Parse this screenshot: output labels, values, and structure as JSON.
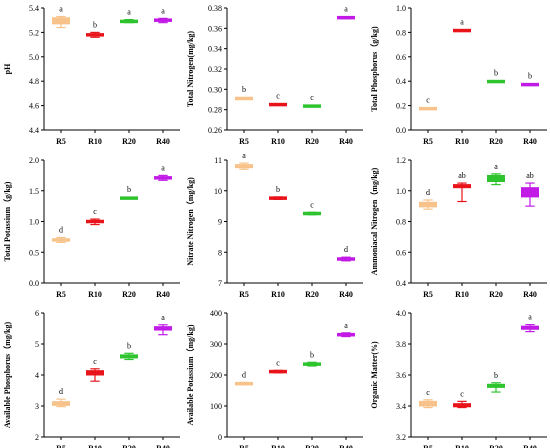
{
  "figure": {
    "colors": {
      "R5": "#f7c38a",
      "R10": "#e8141b",
      "R20": "#2fc42f",
      "R40": "#c21be6"
    },
    "categories": [
      "R5",
      "R10",
      "R20",
      "R40"
    ]
  },
  "chart_data": [
    {
      "type": "box",
      "ylabel": "pH",
      "ylim": [
        4.4,
        5.4
      ],
      "yticks": [
        4.4,
        4.6,
        4.8,
        5.0,
        5.2,
        5.4
      ],
      "decimals": 1,
      "categories": [
        "R5",
        "R10",
        "R20",
        "R40"
      ],
      "boxes": [
        {
          "min": 5.24,
          "q1": 5.27,
          "median": 5.29,
          "q3": 5.32,
          "max": 5.33,
          "letter": "a"
        },
        {
          "min": 5.16,
          "q1": 5.17,
          "median": 5.18,
          "q3": 5.19,
          "max": 5.2,
          "letter": "b"
        },
        {
          "min": 5.28,
          "q1": 5.285,
          "median": 5.29,
          "q3": 5.3,
          "max": 5.305,
          "letter": "a"
        },
        {
          "min": 5.28,
          "q1": 5.29,
          "median": 5.3,
          "q3": 5.31,
          "max": 5.315,
          "letter": "a"
        }
      ]
    },
    {
      "type": "box",
      "ylabel": "Total Nitrogen(mg/kg)",
      "ylim": [
        0.26,
        0.38
      ],
      "yticks": [
        0.26,
        0.28,
        0.3,
        0.32,
        0.34,
        0.36,
        0.38
      ],
      "decimals": 2,
      "categories": [
        "R5",
        "R10",
        "R20",
        "R40"
      ],
      "boxes": [
        {
          "min": 0.2905,
          "q1": 0.2908,
          "median": 0.291,
          "q3": 0.2912,
          "max": 0.2915,
          "letter": "b"
        },
        {
          "min": 0.2845,
          "q1": 0.2848,
          "median": 0.285,
          "q3": 0.2853,
          "max": 0.2856,
          "letter": "c"
        },
        {
          "min": 0.2828,
          "q1": 0.2832,
          "median": 0.2835,
          "q3": 0.2838,
          "max": 0.2842,
          "letter": "c"
        },
        {
          "min": 0.3695,
          "q1": 0.37,
          "median": 0.3705,
          "q3": 0.371,
          "max": 0.3713,
          "letter": "a"
        }
      ]
    },
    {
      "type": "box",
      "ylabel": "Total Phosphorus（g/kg)",
      "ylim": [
        0.0,
        1.0
      ],
      "yticks": [
        0.0,
        0.2,
        0.4,
        0.6,
        0.8,
        1.0
      ],
      "decimals": 1,
      "categories": [
        "R5",
        "R10",
        "R20",
        "R40"
      ],
      "boxes": [
        {
          "min": 0.17,
          "q1": 0.172,
          "median": 0.175,
          "q3": 0.178,
          "max": 0.18,
          "letter": "c"
        },
        {
          "min": 0.81,
          "q1": 0.812,
          "median": 0.815,
          "q3": 0.82,
          "max": 0.822,
          "letter": "a"
        },
        {
          "min": 0.392,
          "q1": 0.395,
          "median": 0.397,
          "q3": 0.4,
          "max": 0.402,
          "letter": "b"
        },
        {
          "min": 0.368,
          "q1": 0.37,
          "median": 0.372,
          "q3": 0.375,
          "max": 0.377,
          "letter": "b"
        }
      ]
    },
    {
      "type": "box",
      "ylabel": "Total Potassium（g/kg)",
      "ylim": [
        0.0,
        2.0
      ],
      "yticks": [
        0.0,
        0.5,
        1.0,
        1.5,
        2.0
      ],
      "decimals": 1,
      "categories": [
        "R5",
        "R10",
        "R20",
        "R40"
      ],
      "boxes": [
        {
          "min": 0.66,
          "q1": 0.68,
          "median": 0.7,
          "q3": 0.72,
          "max": 0.74,
          "letter": "d"
        },
        {
          "min": 0.95,
          "q1": 0.98,
          "median": 1.0,
          "q3": 1.02,
          "max": 1.04,
          "letter": "c"
        },
        {
          "min": 1.37,
          "q1": 1.375,
          "median": 1.38,
          "q3": 1.385,
          "max": 1.39,
          "letter": "b"
        },
        {
          "min": 1.67,
          "q1": 1.69,
          "median": 1.71,
          "q3": 1.73,
          "max": 1.75,
          "letter": "a"
        }
      ]
    },
    {
      "type": "box",
      "ylabel": "Nitrate Nitrogen（mg/kg)",
      "ylim": [
        7,
        11
      ],
      "yticks": [
        7,
        8,
        9,
        10,
        11
      ],
      "decimals": 0,
      "categories": [
        "R5",
        "R10",
        "R20",
        "R40"
      ],
      "boxes": [
        {
          "min": 10.7,
          "q1": 10.75,
          "median": 10.8,
          "q3": 10.85,
          "max": 10.9,
          "letter": "a"
        },
        {
          "min": 9.72,
          "q1": 9.74,
          "median": 9.76,
          "q3": 9.78,
          "max": 9.8,
          "letter": "b"
        },
        {
          "min": 9.22,
          "q1": 9.24,
          "median": 9.26,
          "q3": 9.28,
          "max": 9.3,
          "letter": "c"
        },
        {
          "min": 7.72,
          "q1": 7.75,
          "median": 7.78,
          "q3": 7.81,
          "max": 7.84,
          "letter": "d"
        }
      ]
    },
    {
      "type": "box",
      "ylabel": "Ammoniacal Nitrogen（mg/kg)",
      "ylim": [
        0.4,
        1.2
      ],
      "yticks": [
        0.4,
        0.6,
        0.8,
        1.0,
        1.2
      ],
      "decimals": 1,
      "categories": [
        "R5",
        "R10",
        "R20",
        "R40"
      ],
      "boxes": [
        {
          "min": 0.88,
          "q1": 0.895,
          "median": 0.91,
          "q3": 0.925,
          "max": 0.94,
          "letter": "d"
        },
        {
          "min": 0.93,
          "q1": 1.02,
          "median": 1.03,
          "q3": 1.04,
          "max": 1.05,
          "letter": "ab"
        },
        {
          "min": 1.04,
          "q1": 1.06,
          "median": 1.08,
          "q3": 1.1,
          "max": 1.11,
          "letter": "a"
        },
        {
          "min": 0.9,
          "q1": 0.96,
          "median": 0.99,
          "q3": 1.02,
          "max": 1.05,
          "letter": "ab"
        }
      ]
    },
    {
      "type": "box",
      "ylabel": "Available Phosphorus（mg/kg)",
      "ylim": [
        2,
        6
      ],
      "yticks": [
        2,
        3,
        4,
        5,
        6
      ],
      "decimals": 0,
      "categories": [
        "R5",
        "R10",
        "R20",
        "R40"
      ],
      "boxes": [
        {
          "min": 2.98,
          "q1": 3.02,
          "median": 3.08,
          "q3": 3.14,
          "max": 3.22,
          "letter": "d"
        },
        {
          "min": 3.8,
          "q1": 4.0,
          "median": 4.08,
          "q3": 4.14,
          "max": 4.2,
          "letter": "c"
        },
        {
          "min": 4.5,
          "q1": 4.55,
          "median": 4.6,
          "q3": 4.65,
          "max": 4.7,
          "letter": "b"
        },
        {
          "min": 5.3,
          "q1": 5.45,
          "median": 5.5,
          "q3": 5.56,
          "max": 5.62,
          "letter": "a"
        }
      ]
    },
    {
      "type": "box",
      "ylabel": "Available Potassium（mg/kg)",
      "ylim": [
        0,
        400
      ],
      "yticks": [
        0,
        100,
        200,
        300,
        400
      ],
      "decimals": 0,
      "categories": [
        "R5",
        "R10",
        "R20",
        "R40"
      ],
      "boxes": [
        {
          "min": 168,
          "q1": 170,
          "median": 172,
          "q3": 174,
          "max": 176,
          "letter": "d"
        },
        {
          "min": 207,
          "q1": 209,
          "median": 211,
          "q3": 213,
          "max": 215,
          "letter": "c"
        },
        {
          "min": 229,
          "q1": 232,
          "median": 235,
          "q3": 238,
          "max": 241,
          "letter": "b"
        },
        {
          "min": 324,
          "q1": 327,
          "median": 330,
          "q3": 333,
          "max": 336,
          "letter": "a"
        }
      ]
    },
    {
      "type": "box",
      "ylabel": "Organic Matter(%)",
      "ylim": [
        3.2,
        4.0
      ],
      "yticks": [
        3.2,
        3.4,
        3.6,
        3.8,
        4.0
      ],
      "decimals": 1,
      "categories": [
        "R5",
        "R10",
        "R20",
        "R40"
      ],
      "boxes": [
        {
          "min": 3.39,
          "q1": 3.4,
          "median": 3.415,
          "q3": 3.43,
          "max": 3.44,
          "letter": "c"
        },
        {
          "min": 3.39,
          "q1": 3.395,
          "median": 3.405,
          "q3": 3.415,
          "max": 3.43,
          "letter": "c"
        },
        {
          "min": 3.49,
          "q1": 3.52,
          "median": 3.53,
          "q3": 3.54,
          "max": 3.55,
          "letter": "b"
        },
        {
          "min": 3.88,
          "q1": 3.895,
          "median": 3.905,
          "q3": 3.915,
          "max": 3.925,
          "letter": "a"
        }
      ]
    }
  ]
}
